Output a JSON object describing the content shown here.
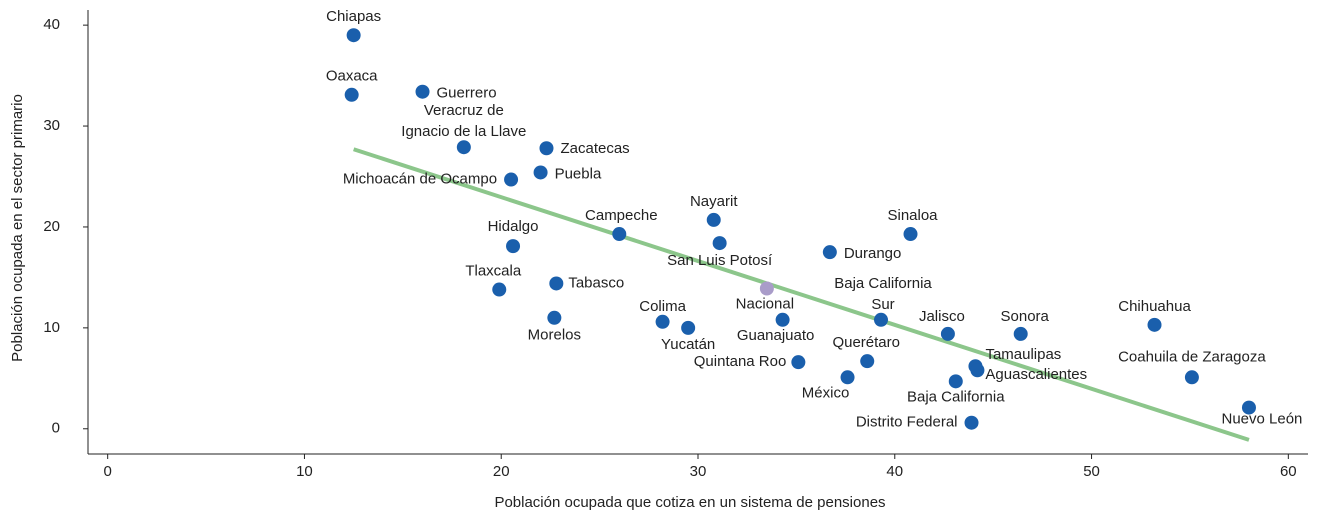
{
  "chart_data": {
    "type": "scatter",
    "xlabel": "Población ocupada que cotiza en un sistema de pensiones",
    "ylabel": "Población ocupada en el sector primario",
    "xlim": [
      -1,
      61
    ],
    "ylim": [
      -2.5,
      41.5
    ],
    "xticks": [
      0,
      10,
      20,
      30,
      40,
      50,
      60
    ],
    "yticks": [
      0,
      10,
      20,
      30,
      40
    ],
    "series": [
      {
        "color": "#1a5fac",
        "highlight_color": "#a99cc9",
        "names": [
          "Chiapas",
          "Oaxaca",
          "Guerrero",
          "Veracruz de Ignacio de la Llave",
          "Zacatecas",
          "Michoacán de Ocampo",
          "Puebla",
          "Nayarit",
          "Campeche",
          "Sinaloa",
          "Hidalgo",
          "San Luis Potosí",
          "Durango",
          "Tlaxcala",
          "Tabasco",
          "Nacional",
          "Baja California Sur",
          "Guanajuato",
          "Colima",
          "Yucatán",
          "Morelos",
          "Jalisco",
          "Sonora",
          "Chihuahua",
          "Quintana Roo",
          "Querétaro",
          "México",
          "Tamaulipas",
          "Aguascalientes",
          "Baja California",
          "Coahuila de Zaragoza",
          "Distrito Federal",
          "Nuevo León"
        ],
        "x": [
          12.5,
          12.4,
          16.0,
          18.1,
          22.3,
          20.5,
          22.0,
          30.8,
          26.0,
          40.8,
          20.6,
          31.1,
          36.7,
          19.9,
          22.8,
          33.5,
          39.3,
          34.3,
          28.2,
          29.5,
          22.7,
          42.7,
          46.4,
          53.2,
          35.1,
          38.6,
          37.6,
          44.1,
          44.2,
          43.1,
          55.1,
          43.9,
          58.0
        ],
        "values": [
          39.0,
          33.1,
          33.4,
          27.9,
          27.8,
          24.7,
          25.4,
          20.7,
          19.3,
          19.3,
          18.1,
          18.4,
          17.5,
          13.8,
          14.4,
          13.9,
          10.8,
          10.8,
          10.6,
          10.0,
          11.0,
          9.4,
          9.4,
          10.3,
          6.6,
          6.7,
          5.1,
          6.2,
          5.8,
          4.7,
          5.1,
          0.6,
          2.1
        ]
      }
    ],
    "trendline": {
      "color": "#8cc68b",
      "x": [
        12.5,
        58.0
      ],
      "y": [
        27.7,
        -1.1
      ]
    }
  }
}
